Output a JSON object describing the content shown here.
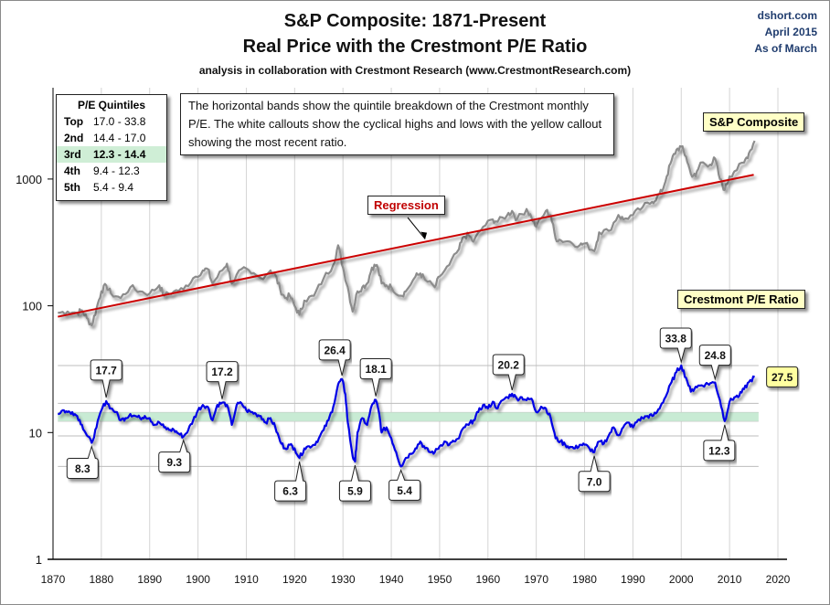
{
  "header": {
    "title_line1": "S&P Composite: 1871-Present",
    "title_line2": "Real Price with the Crestmont P/E Ratio",
    "subtitle": "analysis in collaboration with Crestmont Research (www.CrestmontResearch.com)",
    "source": "dshort.com",
    "date": "April 2015",
    "as_of": "As of March"
  },
  "quintiles": {
    "title": "P/E Quintiles",
    "rows": [
      {
        "key": "Top",
        "range": "17.0 - 33.8"
      },
      {
        "key": "2nd",
        "range": "14.4 - 17.0"
      },
      {
        "key": "3rd",
        "range": "12.3 - 14.4",
        "highlight": true
      },
      {
        "key": "4th",
        "range": "9.4 - 12.3"
      },
      {
        "key": "5th",
        "range": "5.4 - 9.4"
      }
    ]
  },
  "note": "The horizontal bands show the quintile breakdown of the Crestmont monthly P/E.  The white callouts show the cyclical highs and lows with the yellow callout showing the most recent ratio.",
  "colors": {
    "sp_line": "#8c8c8c",
    "regression": "#cc0000",
    "pe_line": "#0000e6",
    "band_fill": "#c8ebd4",
    "callout_recent": "#ffffa0",
    "label_fill": "#ffffc6",
    "grid": "#d4d4d4"
  },
  "chart_data": {
    "type": "line",
    "title": "S&P Composite: 1871-Present — Real Price with the Crestmont P/E Ratio",
    "xlabel": "",
    "ylabel": "",
    "yscale": "log",
    "ylim": [
      1,
      5000
    ],
    "xlim": [
      1870,
      2020
    ],
    "x_ticks": [
      "1870",
      "1880",
      "1890",
      "1900",
      "1910",
      "1920",
      "1930",
      "1940",
      "1950",
      "1960",
      "1970",
      "1980",
      "1990",
      "2000",
      "2010",
      "2020"
    ],
    "y_ticks": [
      "1",
      "10",
      "100",
      "1000"
    ],
    "grid": true,
    "legend": [
      {
        "name": "S&P Composite",
        "placement": "top-right"
      },
      {
        "name": "Crestmont P/E Ratio",
        "placement": "middle-right"
      },
      {
        "name": "Regression",
        "placement": "center"
      }
    ],
    "pe_bands": [
      5.4,
      9.4,
      12.3,
      14.4,
      17.0,
      33.8
    ],
    "highlight_band": [
      12.3,
      14.4
    ],
    "series": [
      {
        "name": "S&P Composite",
        "x": [
          1871,
          1873,
          1875,
          1876,
          1877,
          1878,
          1879,
          1880,
          1881,
          1882,
          1884,
          1886,
          1888,
          1890,
          1892,
          1893,
          1895,
          1897,
          1899,
          1901,
          1902,
          1903,
          1905,
          1906,
          1907,
          1909,
          1911,
          1913,
          1915,
          1916,
          1917,
          1918,
          1919,
          1920,
          1921,
          1922,
          1924,
          1926,
          1928,
          1929,
          1930,
          1931,
          1932,
          1933,
          1934,
          1935,
          1936,
          1937,
          1938,
          1939,
          1940,
          1942,
          1943,
          1945,
          1946,
          1947,
          1949,
          1950,
          1952,
          1954,
          1955,
          1956,
          1957,
          1959,
          1961,
          1962,
          1964,
          1965,
          1966,
          1968,
          1969,
          1970,
          1972,
          1973,
          1974,
          1975,
          1977,
          1979,
          1980,
          1982,
          1983,
          1985,
          1987,
          1988,
          1990,
          1992,
          1994,
          1995,
          1996,
          1997,
          1998,
          1999,
          2000,
          2001,
          2002,
          2003,
          2004,
          2006,
          2007,
          2008,
          2009,
          2010,
          2011,
          2013,
          2014,
          2015.2
        ],
        "values": [
          88,
          90,
          88,
          92,
          80,
          70,
          95,
          130,
          145,
          125,
          115,
          140,
          130,
          125,
          145,
          120,
          130,
          135,
          165,
          190,
          195,
          150,
          190,
          215,
          150,
          195,
          180,
          165,
          190,
          175,
          135,
          115,
          120,
          100,
          85,
          110,
          120,
          165,
          210,
          300,
          200,
          140,
          90,
          130,
          140,
          150,
          200,
          210,
          150,
          145,
          140,
          120,
          130,
          170,
          180,
          160,
          140,
          170,
          210,
          280,
          350,
          360,
          320,
          420,
          480,
          460,
          520,
          560,
          480,
          580,
          500,
          420,
          560,
          520,
          340,
          330,
          320,
          300,
          310,
          270,
          380,
          390,
          520,
          480,
          520,
          600,
          660,
          720,
          800,
          1050,
          1400,
          1700,
          1800,
          1500,
          1100,
          1050,
          1350,
          1300,
          1450,
          1000,
          820,
          1050,
          1150,
          1350,
          1600,
          2000
        ]
      },
      {
        "name": "Regression",
        "x": [
          1871,
          2015
        ],
        "values": [
          82,
          1080
        ]
      },
      {
        "name": "Crestmont P/E Ratio",
        "x": [
          1871,
          1872,
          1873,
          1874,
          1875,
          1876,
          1877,
          1878,
          1879,
          1880,
          1881,
          1882,
          1883,
          1884,
          1885,
          1886,
          1887,
          1888,
          1889,
          1890,
          1891,
          1892,
          1893,
          1894,
          1895,
          1896,
          1897,
          1898,
          1899,
          1900,
          1901,
          1902,
          1903,
          1904,
          1905,
          1906,
          1907,
          1908,
          1909,
          1910,
          1911,
          1912,
          1913,
          1914,
          1915,
          1916,
          1917,
          1918,
          1919,
          1920,
          1921,
          1922,
          1923,
          1924,
          1925,
          1926,
          1927,
          1928,
          1929,
          1929.8,
          1930.5,
          1931,
          1932,
          1932.5,
          1933,
          1934,
          1935,
          1936,
          1936.8,
          1937.5,
          1938,
          1939,
          1940,
          1941,
          1942,
          1943,
          1944,
          1945,
          1946,
          1947,
          1948,
          1949,
          1950,
          1951,
          1952,
          1953,
          1954,
          1955,
          1956,
          1957,
          1958,
          1959,
          1960,
          1961,
          1962,
          1963,
          1964,
          1965,
          1966,
          1967,
          1968,
          1969,
          1970,
          1971,
          1972,
          1973,
          1974,
          1975,
          1976,
          1977,
          1978,
          1979,
          1980,
          1981,
          1982,
          1983,
          1984,
          1985,
          1986,
          1987,
          1988,
          1989,
          1990,
          1991,
          1992,
          1993,
          1994,
          1995,
          1996,
          1997,
          1998,
          1999,
          2000,
          2001,
          2002,
          2003,
          2004,
          2005,
          2006,
          2007,
          2008,
          2009,
          2010,
          2011,
          2012,
          2013,
          2014,
          2015.2
        ],
        "values": [
          14,
          15,
          14.5,
          14.5,
          13.5,
          11.5,
          9.5,
          8.3,
          11,
          15,
          17.7,
          15.5,
          14.5,
          12.5,
          13,
          14,
          13.5,
          13,
          13.5,
          13,
          11.5,
          12,
          11,
          10.5,
          10.5,
          9.8,
          9.3,
          10.5,
          12.5,
          15,
          16.5,
          16,
          12.5,
          16.5,
          17.2,
          16.5,
          11.5,
          16.5,
          17,
          15,
          14.5,
          14,
          13.5,
          12,
          13,
          11,
          8.5,
          7.5,
          8,
          7.5,
          6.3,
          7.5,
          7.8,
          8,
          9,
          10.5,
          12.5,
          16,
          24,
          26.4,
          20,
          12,
          6.5,
          5.9,
          10,
          13,
          11.5,
          16.5,
          18.1,
          14,
          10,
          11,
          9,
          7,
          5.4,
          6.3,
          6.8,
          7.5,
          8.5,
          7.5,
          7,
          7,
          7.8,
          8.5,
          8,
          8.5,
          9,
          11,
          11.5,
          12.5,
          14.5,
          16.5,
          15.5,
          17.5,
          15.5,
          18,
          19,
          20.2,
          18.5,
          19,
          18,
          18.5,
          14.5,
          16,
          15.5,
          13,
          9,
          8.5,
          8,
          7.7,
          7.5,
          8,
          8,
          7.5,
          7,
          8.5,
          8.2,
          9.5,
          11,
          9.5,
          11,
          12,
          11,
          12.5,
          13,
          13.5,
          13.5,
          14.5,
          17,
          20,
          25,
          30,
          33.8,
          27,
          21,
          23,
          23.5,
          24,
          24.5,
          24.8,
          18,
          12.3,
          17.5,
          19,
          19.5,
          22,
          25,
          27.5
        ]
      }
    ],
    "annotations": [
      {
        "text": "17.7",
        "x": 1881,
        "y": 17.7,
        "kind": "high"
      },
      {
        "text": "8.3",
        "x": 1878,
        "y": 8.3,
        "kind": "low"
      },
      {
        "text": "17.2",
        "x": 1905,
        "y": 17.2,
        "kind": "high"
      },
      {
        "text": "9.3",
        "x": 1897,
        "y": 9.3,
        "kind": "low"
      },
      {
        "text": "26.4",
        "x": 1929.8,
        "y": 26.4,
        "kind": "high"
      },
      {
        "text": "6.3",
        "x": 1921,
        "y": 6.3,
        "kind": "low"
      },
      {
        "text": "5.9",
        "x": 1932.5,
        "y": 5.9,
        "kind": "low"
      },
      {
        "text": "18.1",
        "x": 1936.8,
        "y": 18.1,
        "kind": "high"
      },
      {
        "text": "5.4",
        "x": 1942,
        "y": 5.4,
        "kind": "low"
      },
      {
        "text": "20.2",
        "x": 1965,
        "y": 20.2,
        "kind": "high"
      },
      {
        "text": "7.0",
        "x": 1982,
        "y": 7.0,
        "kind": "low"
      },
      {
        "text": "33.8",
        "x": 2000,
        "y": 33.8,
        "kind": "high"
      },
      {
        "text": "24.8",
        "x": 2007,
        "y": 24.8,
        "kind": "high"
      },
      {
        "text": "12.3",
        "x": 2009,
        "y": 12.3,
        "kind": "low"
      },
      {
        "text": "27.5",
        "x": 2015.2,
        "y": 27.5,
        "kind": "recent"
      }
    ]
  }
}
